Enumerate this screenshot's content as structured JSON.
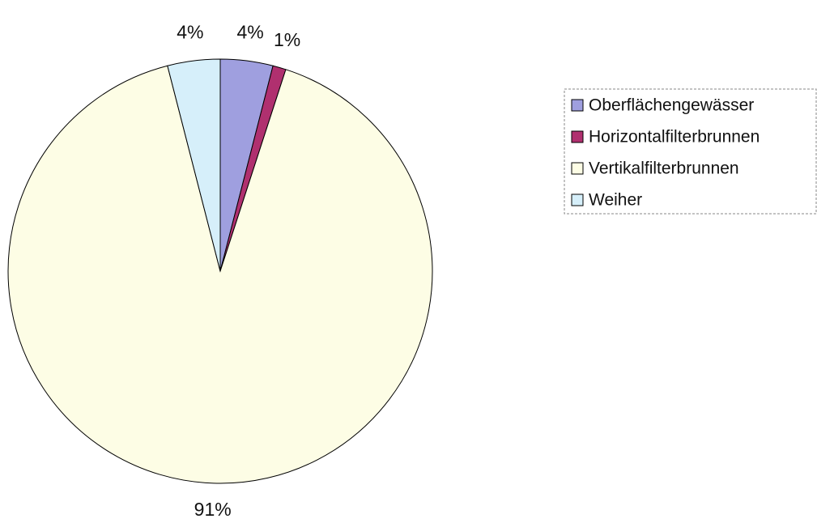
{
  "chart_data": {
    "type": "pie",
    "categories": [
      "Oberflächengewässer",
      "Horizontalfilterbrunnen",
      "Vertikalfilterbrunnen",
      "Weiher"
    ],
    "values": [
      4,
      1,
      91,
      4
    ],
    "value_labels": [
      "4%",
      "1%",
      "91%",
      "4%"
    ],
    "colors": [
      "#9f9fdf",
      "#b0306f",
      "#fdfde5",
      "#d6effa"
    ],
    "legend": "right"
  }
}
